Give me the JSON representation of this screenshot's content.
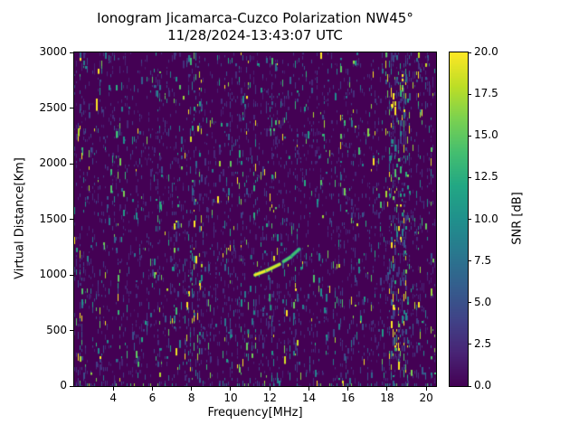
{
  "chart_data": {
    "type": "heatmap",
    "title": "Ionogram Jicamarca-Cuzco Polarization NW45°",
    "subtitle": "11/28/2024-13:43:07 UTC",
    "xlabel": "Frequency[MHz]",
    "ylabel": "Virtual Distance[Km]",
    "colorbar_label": "SNR [dB]",
    "colormap": "viridis",
    "xlim": [
      2,
      20.5
    ],
    "ylim": [
      0,
      3000
    ],
    "clim": [
      0,
      20
    ],
    "x_ticks": [
      4,
      6,
      8,
      10,
      12,
      14,
      16,
      18,
      20
    ],
    "x_tick_labels": [
      "4",
      "6",
      "8",
      "10",
      "12",
      "14",
      "16",
      "18",
      "20"
    ],
    "y_ticks": [
      0,
      500,
      1000,
      1500,
      2000,
      2500,
      3000
    ],
    "y_tick_labels": [
      "0",
      "500",
      "1000",
      "1500",
      "2000",
      "2500",
      "3000"
    ],
    "colorbar_ticks": [
      0,
      2.5,
      5,
      7.5,
      10,
      12.5,
      15,
      17.5,
      20
    ],
    "colorbar_tick_labels": [
      "0.0",
      "2.5",
      "5.0",
      "7.5",
      "10.0",
      "12.5",
      "15.0",
      "17.5",
      "20.0"
    ],
    "background_value_dB": 0,
    "noise": {
      "base_density": 0.055,
      "fine_density": 0.1,
      "bottom_row_density": 0.3
    },
    "rfi_bands": [
      {
        "f": 2.35,
        "w": 0.18,
        "density": 0.1,
        "boost": 1.15
      },
      {
        "f": 3.35,
        "w": 0.08,
        "density": 0.05,
        "boost": 1.0
      },
      {
        "f": 4.25,
        "w": 0.08,
        "density": 0.04,
        "boost": 1.0
      },
      {
        "f": 5.1,
        "w": 0.08,
        "density": 0.04,
        "boost": 1.0
      },
      {
        "f": 6.3,
        "w": 0.12,
        "density": 0.08,
        "boost": 1.1
      },
      {
        "f": 7.05,
        "w": 0.08,
        "density": 0.04,
        "boost": 1.0
      },
      {
        "f": 7.8,
        "w": 0.12,
        "density": 0.13,
        "boost": 1.25
      },
      {
        "f": 8.1,
        "w": 0.12,
        "density": 0.15,
        "boost": 1.3
      },
      {
        "f": 8.45,
        "w": 0.1,
        "density": 0.11,
        "boost": 1.2
      },
      {
        "f": 9.3,
        "w": 0.08,
        "density": 0.05,
        "boost": 1.0
      },
      {
        "f": 10.45,
        "w": 0.12,
        "density": 0.09,
        "boost": 1.1
      },
      {
        "f": 11.3,
        "w": 0.1,
        "density": 0.08,
        "boost": 1.1
      },
      {
        "f": 12.1,
        "w": 0.12,
        "density": 0.1,
        "boost": 1.15
      },
      {
        "f": 13.35,
        "w": 0.1,
        "density": 0.07,
        "boost": 1.05
      },
      {
        "f": 14.85,
        "w": 0.08,
        "density": 0.05,
        "boost": 1.0
      },
      {
        "f": 15.6,
        "w": 0.08,
        "density": 0.04,
        "boost": 1.0
      },
      {
        "f": 16.25,
        "w": 0.1,
        "density": 0.06,
        "boost": 1.05
      },
      {
        "f": 17.1,
        "w": 0.08,
        "density": 0.04,
        "boost": 1.0
      },
      {
        "f": 18.3,
        "w": 0.28,
        "density": 0.27,
        "boost": 1.45
      },
      {
        "f": 18.85,
        "w": 0.22,
        "density": 0.22,
        "boost": 1.4
      },
      {
        "f": 19.6,
        "w": 0.12,
        "density": 0.1,
        "boost": 1.2
      },
      {
        "f": 20.25,
        "w": 0.12,
        "density": 0.07,
        "boost": 1.1
      }
    ],
    "echo_trace": [
      {
        "f_start": 11.25,
        "km_start": 1000,
        "f_end": 11.85,
        "km_end": 1040,
        "snr": 20
      },
      {
        "f_start": 11.85,
        "km_start": 1040,
        "f_end": 12.5,
        "km_end": 1095,
        "snr": 19
      },
      {
        "f_start": 12.7,
        "km_start": 1120,
        "f_end": 13.1,
        "km_end": 1165,
        "snr": 15
      },
      {
        "f_start": 13.15,
        "km_start": 1175,
        "f_end": 13.5,
        "km_end": 1230,
        "snr": 14
      }
    ],
    "echo_marks": [
      {
        "f": 12.0,
        "km": 760,
        "h_km": 70,
        "snr": 13
      },
      {
        "f": 12.05,
        "km": 680,
        "h_km": 50,
        "snr": 11
      },
      {
        "f": 11.2,
        "km": 640,
        "h_km": 40,
        "snr": 10
      },
      {
        "f": 10.9,
        "km": 470,
        "h_km": 40,
        "snr": 11
      },
      {
        "f": 11.05,
        "km": 1140,
        "h_km": 40,
        "snr": 9
      },
      {
        "f": 12.6,
        "km": 1260,
        "h_km": 30,
        "snr": 9
      },
      {
        "f": 13.0,
        "km": 2040,
        "h_km": 30,
        "snr": 12
      }
    ]
  }
}
